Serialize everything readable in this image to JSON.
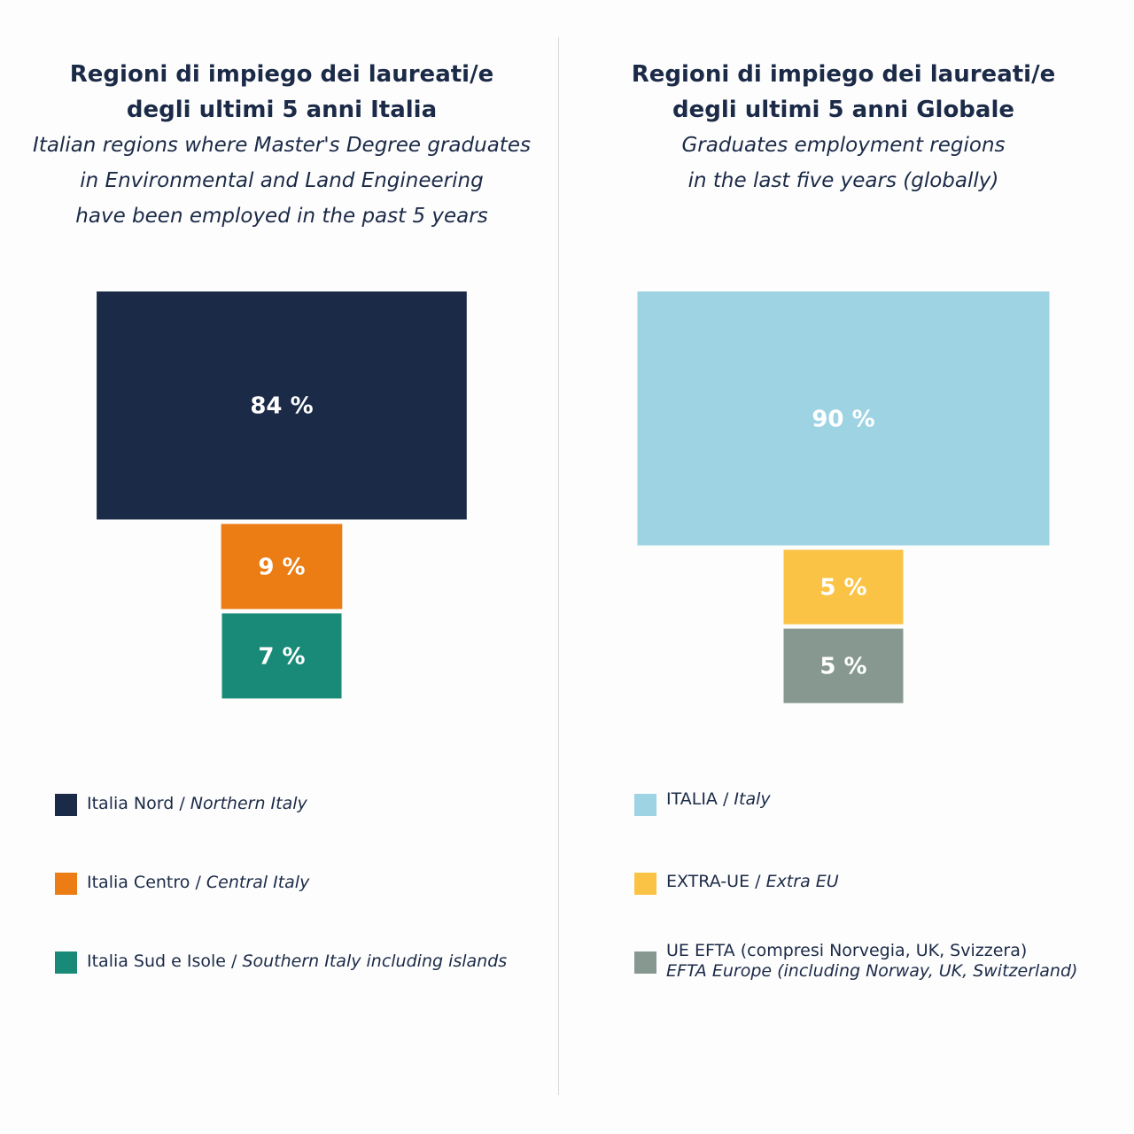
{
  "panels": [
    {
      "title_lines": [
        "Regioni di impiego dei laureati/e",
        "degli ultimi 5 anni Italia"
      ],
      "subtitle_lines": [
        "Italian regions where Master's Degree graduates",
        "in Environmental and Land Engineering",
        "have been employed in the past 5 years"
      ],
      "legend": [
        {
          "it": "Italia Nord",
          "sep": " / ",
          "en": "Northern Italy",
          "color": "#1b2a47"
        },
        {
          "it": "Italia Centro",
          "sep": " / ",
          "en": "Central Italy",
          "color": "#ec7c14"
        },
        {
          "it": "Italia Sud e Isole",
          "sep": " / ",
          "en": "Southern Italy including islands",
          "color": "#188a77"
        }
      ]
    },
    {
      "title_lines": [
        "Regioni di impiego dei laureati/e",
        "degli ultimi 5 anni Globale"
      ],
      "subtitle_lines": [
        "Graduates employment regions",
        "in the last five years (globally)"
      ],
      "legend": [
        {
          "it": "ITALIA",
          "sep": " / ",
          "en": "Italy",
          "color": "#9dd3e3"
        },
        {
          "it": "EXTRA-UE",
          "sep": " / ",
          "en": "Extra EU",
          "color": "#fbc346"
        },
        {
          "it": "UE EFTA (compresi Norvegia, UK, Svizzera)",
          "sep": "",
          "en": "EFTA Europe (including Norway, UK, Switzerland)",
          "color": "#86988f",
          "two_line": true
        }
      ]
    }
  ],
  "chart_data": [
    {
      "type": "funnel",
      "title": "Regioni di impiego dei laureati/e degli ultimi 5 anni Italia",
      "categories": [
        "Italia Nord / Northern Italy",
        "Italia Centro / Central Italy",
        "Italia Sud e Isole / Southern Italy including islands"
      ],
      "values": [
        84,
        9,
        7
      ],
      "labels": [
        "84 %",
        "9 %",
        "7 %"
      ],
      "colors": [
        "#1b2a47",
        "#ec7c14",
        "#188a77"
      ],
      "legend_position": "bottom"
    },
    {
      "type": "funnel",
      "title": "Regioni di impiego dei laureati/e degli ultimi 5 anni Globale",
      "categories": [
        "ITALIA / Italy",
        "EXTRA-UE / Extra EU",
        "UE EFTA (compresi Norvegia, UK, Svizzera) / EFTA Europe (including Norway, UK, Switzerland)"
      ],
      "values": [
        90,
        5,
        5
      ],
      "labels": [
        "90 %",
        "5 %",
        "5 %"
      ],
      "colors": [
        "#9dd3e3",
        "#fbc346",
        "#86988f"
      ],
      "legend_position": "bottom"
    }
  ]
}
